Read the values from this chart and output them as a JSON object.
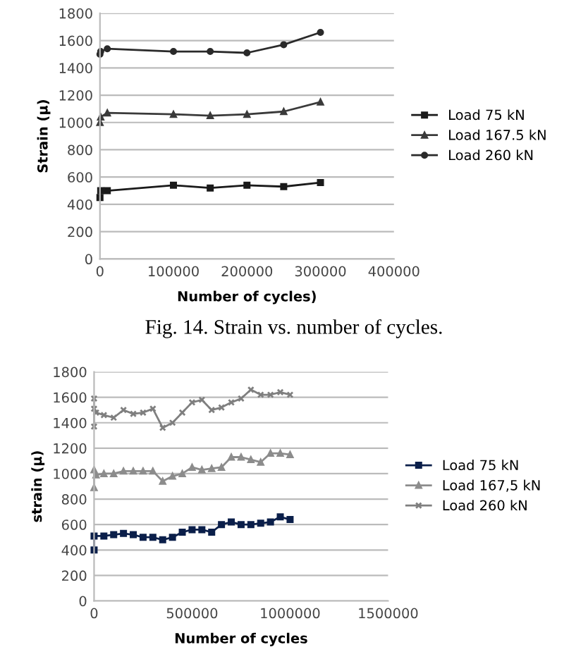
{
  "chart_data": [
    {
      "type": "line",
      "xlabel": "Number of cycles)",
      "ylabel": "Strain (µ)",
      "annotations": [
        "Fig. 14. Strain vs. number of cycles."
      ],
      "xlim": [
        0,
        400000
      ],
      "xticks": [
        0,
        100000,
        200000,
        300000,
        400000
      ],
      "ylim": [
        0,
        1800
      ],
      "yticks": [
        0,
        200,
        400,
        600,
        800,
        1000,
        1200,
        1400,
        1600,
        1800
      ],
      "grid": "y",
      "legend": "right",
      "line_style": "solid",
      "series": [
        {
          "name": "Load 75 kN",
          "color": "#1a1a1a",
          "marker": "square",
          "x": [
            0,
            1000,
            10000,
            100000,
            150000,
            200000,
            250000,
            300000
          ],
          "values": [
            450,
            500,
            500,
            540,
            520,
            540,
            530,
            560
          ]
        },
        {
          "name": "Load 167.5 kN",
          "color": "#3a3a3a",
          "marker": "triangle",
          "x": [
            0,
            1000,
            10000,
            100000,
            150000,
            200000,
            250000,
            300000
          ],
          "values": [
            1000,
            1040,
            1070,
            1060,
            1050,
            1060,
            1080,
            1150
          ]
        },
        {
          "name": "Load 260 kN",
          "color": "#2a2a2a",
          "marker": "circle",
          "x": [
            0,
            1000,
            10000,
            100000,
            150000,
            200000,
            250000,
            300000
          ],
          "values": [
            1500,
            1520,
            1540,
            1520,
            1520,
            1510,
            1570,
            1660
          ]
        }
      ]
    },
    {
      "type": "line",
      "xlabel": "Number of cycles",
      "ylabel": "strain (µ)",
      "xlim": [
        0,
        1500000
      ],
      "xticks": [
        0,
        500000,
        1000000,
        1500000
      ],
      "ylim": [
        0,
        1800
      ],
      "yticks": [
        0,
        200,
        400,
        600,
        800,
        1000,
        1200,
        1400,
        1600,
        1800
      ],
      "grid": "y",
      "legend": "right",
      "line_style": "solid",
      "series": [
        {
          "name": "Load 75 kN",
          "color": "#0b1f4a",
          "marker": "square",
          "x": [
            0,
            0,
            50000,
            100000,
            150000,
            200000,
            250000,
            300000,
            350000,
            400000,
            450000,
            500000,
            550000,
            600000,
            650000,
            700000,
            750000,
            800000,
            850000,
            900000,
            950000,
            1000000
          ],
          "values": [
            400,
            510,
            510,
            520,
            530,
            520,
            500,
            500,
            480,
            500,
            540,
            560,
            560,
            540,
            600,
            620,
            600,
            600,
            610,
            620,
            660,
            640
          ]
        },
        {
          "name": "Load 167,5 kN",
          "color": "#8c8c8c",
          "marker": "triangle",
          "x": [
            0,
            0,
            10000,
            50000,
            100000,
            150000,
            200000,
            250000,
            300000,
            350000,
            400000,
            450000,
            500000,
            550000,
            600000,
            650000,
            700000,
            750000,
            800000,
            850000,
            900000,
            950000,
            1000000
          ],
          "values": [
            890,
            1030,
            990,
            1000,
            1000,
            1020,
            1020,
            1020,
            1020,
            940,
            980,
            1000,
            1050,
            1030,
            1040,
            1050,
            1130,
            1130,
            1110,
            1090,
            1160,
            1160,
            1150
          ]
        },
        {
          "name": "Load 260 kN",
          "color": "#7f7f7f",
          "marker": "cross",
          "x": [
            0,
            0,
            0,
            10000,
            50000,
            100000,
            150000,
            200000,
            250000,
            300000,
            350000,
            400000,
            450000,
            500000,
            550000,
            600000,
            650000,
            700000,
            750000,
            800000,
            850000,
            900000,
            950000,
            1000000
          ],
          "values": [
            1370,
            1590,
            1510,
            1480,
            1460,
            1440,
            1500,
            1470,
            1480,
            1510,
            1360,
            1400,
            1480,
            1560,
            1580,
            1500,
            1520,
            1560,
            1590,
            1660,
            1620,
            1620,
            1640,
            1620
          ]
        }
      ]
    }
  ]
}
